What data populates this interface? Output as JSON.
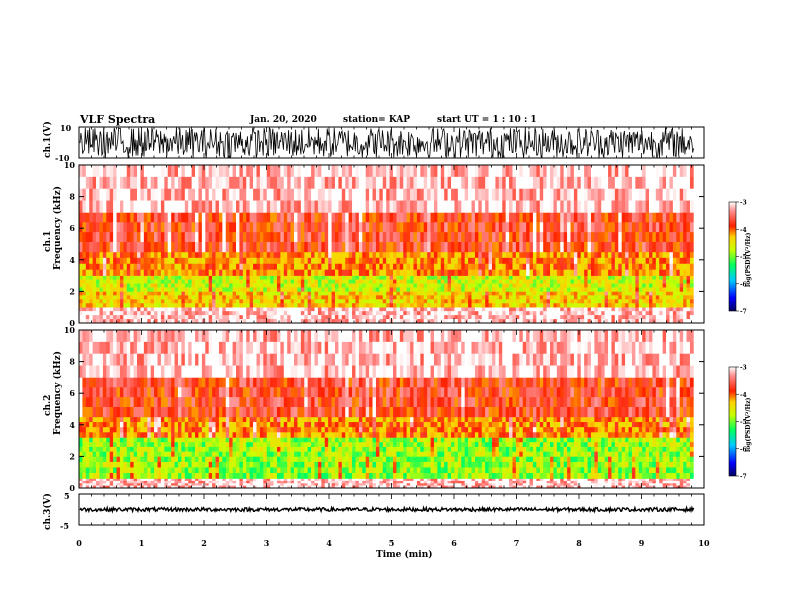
{
  "header": {
    "title": "VLF Spectra",
    "date": "Jan. 20, 2020",
    "station": "station= KAP",
    "start_ut": "start  UT =   1 : 10 : 1"
  },
  "colors": {
    "spectrogram_scale": [
      "#000060",
      "#0000ff",
      "#00c8ff",
      "#00ff60",
      "#c8ff00",
      "#ffd000",
      "#ff2000",
      "#ffffff"
    ],
    "trace": "#000000"
  },
  "chart_data": [
    {
      "type": "line",
      "panel": "ch1-waveform",
      "ylabel": "ch.1(V)",
      "ylim": [
        -10,
        10
      ],
      "yticks": [
        "10",
        "-10"
      ],
      "xlim": [
        0,
        10
      ],
      "description_values": {
        "amplitude_peak_v": 10,
        "mean_v": 0
      }
    },
    {
      "type": "heatmap",
      "panel": "ch1-spectrogram",
      "ylabel": "ch.1\nFrequency  (kHz)",
      "ylabel_top": "ch.1",
      "ylabel_main": "Frequency  (kHz)",
      "ylim": [
        0,
        10
      ],
      "yticks": [
        "0",
        "2",
        "4",
        "6",
        "8",
        "10"
      ],
      "xlim": [
        0,
        9.83
      ],
      "color_scale": {
        "label": "log(PSD)(V²/Hz)",
        "min": -7,
        "max": -3,
        "ticks": [
          "-3",
          "-4",
          "-5",
          "-6",
          "-7"
        ]
      },
      "bands_khz": [
        {
          "from": 0.0,
          "to": 1.0,
          "level": -3.2
        },
        {
          "from": 1.0,
          "to": 2.0,
          "level": -4.5
        },
        {
          "from": 2.0,
          "to": 3.0,
          "level": -4.8
        },
        {
          "from": 3.0,
          "to": 4.5,
          "level": -4.2
        },
        {
          "from": 4.5,
          "to": 7.0,
          "level": -3.8
        },
        {
          "from": 7.0,
          "to": 10.0,
          "level": -3.2
        }
      ]
    },
    {
      "type": "heatmap",
      "panel": "ch2-spectrogram",
      "ylabel": "ch.2\nFrequency  (kHz)",
      "ylabel_top": "ch.2",
      "ylabel_main": "Frequency  (kHz)",
      "ylim": [
        0,
        10
      ],
      "yticks": [
        "0",
        "2",
        "4",
        "6",
        "8",
        "10"
      ],
      "xlim": [
        0,
        9.83
      ],
      "color_scale": {
        "label": "log(PSD)(V²/Hz)",
        "min": -7,
        "max": -3,
        "ticks": [
          "-3",
          "-4",
          "-5",
          "-6",
          "-7"
        ]
      },
      "bands_khz": [
        {
          "from": 0.0,
          "to": 0.6,
          "level": -3.2
        },
        {
          "from": 0.6,
          "to": 2.0,
          "level": -5.0
        },
        {
          "from": 2.0,
          "to": 3.2,
          "level": -5.0
        },
        {
          "from": 3.2,
          "to": 4.5,
          "level": -4.2
        },
        {
          "from": 4.5,
          "to": 7.0,
          "level": -3.8
        },
        {
          "from": 7.0,
          "to": 10.0,
          "level": -3.2
        }
      ]
    },
    {
      "type": "line",
      "panel": "ch3-waveform",
      "ylabel": "ch.3(V)",
      "ylim": [
        -5,
        5
      ],
      "yticks": [
        "5",
        "-5"
      ],
      "xlim": [
        0,
        10
      ],
      "xlabel": "Time  (min)",
      "xticks": [
        "0",
        "1",
        "2",
        "3",
        "4",
        "5",
        "6",
        "7",
        "8",
        "9",
        "10"
      ],
      "description_values": {
        "mean_v": 0,
        "amplitude_peak_v": 0.6
      }
    }
  ]
}
